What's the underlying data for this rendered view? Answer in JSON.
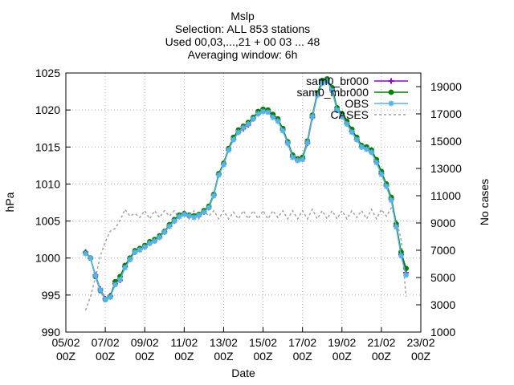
{
  "chart_data": {
    "type": "line",
    "title_lines": [
      "Mslp",
      "Selection: ALL     853 stations",
      "Used 00,03,...,21 + 00 03 ... 48",
      "Averaging window:  6h"
    ],
    "xlabel": "Date",
    "ylabel": "hPa",
    "y2label": "No cases",
    "x_ticks": [
      {
        "line1": "05/02",
        "line2": "00Z",
        "day": 5
      },
      {
        "line1": "07/02",
        "line2": "00Z",
        "day": 7
      },
      {
        "line1": "09/02",
        "line2": "00Z",
        "day": 9
      },
      {
        "line1": "11/02",
        "line2": "00Z",
        "day": 11
      },
      {
        "line1": "13/02",
        "line2": "00Z",
        "day": 13
      },
      {
        "line1": "15/02",
        "line2": "00Z",
        "day": 15
      },
      {
        "line1": "17/02",
        "line2": "00Z",
        "day": 17
      },
      {
        "line1": "19/02",
        "line2": "00Z",
        "day": 19
      },
      {
        "line1": "21/02",
        "line2": "00Z",
        "day": 21
      },
      {
        "line1": "23/02",
        "line2": "00Z",
        "day": 23
      }
    ],
    "xlim_days": [
      5,
      23
    ],
    "ylim": [
      990,
      1025
    ],
    "y_ticks": [
      "990",
      "995",
      "1000",
      "1005",
      "1010",
      "1015",
      "1020",
      "1025"
    ],
    "y2lim": [
      1000,
      20000
    ],
    "y2_ticks": [
      "1000",
      "3000",
      "5000",
      "7000",
      "9000",
      "11000",
      "13000",
      "15000",
      "17000",
      "19000"
    ],
    "legend_position": "top-right",
    "x_days": [
      6.0,
      6.25,
      6.5,
      6.75,
      7.0,
      7.25,
      7.5,
      7.75,
      8.0,
      8.25,
      8.5,
      8.75,
      9.0,
      9.25,
      9.5,
      9.75,
      10.0,
      10.25,
      10.5,
      10.75,
      11.0,
      11.25,
      11.5,
      11.75,
      12.0,
      12.25,
      12.5,
      12.75,
      13.0,
      13.25,
      13.5,
      13.75,
      14.0,
      14.25,
      14.5,
      14.75,
      15.0,
      15.25,
      15.5,
      15.75,
      16.0,
      16.25,
      16.5,
      16.75,
      17.0,
      17.25,
      17.5,
      17.75,
      18.0,
      18.25,
      18.5,
      18.75,
      19.0,
      19.25,
      19.5,
      19.75,
      20.0,
      20.25,
      20.5,
      20.75,
      21.0,
      21.25,
      21.5,
      21.75,
      22.0,
      22.25
    ],
    "series": [
      {
        "name": "sam0_br000",
        "color": "#9400d3",
        "marker": "plus",
        "values": [
          1000.8,
          1000.0,
          997.7,
          995.8,
          994.5,
          994.9,
          996.5,
          997.0,
          998.8,
          999.8,
          1000.8,
          1001.2,
          1001.5,
          1002.0,
          1002.3,
          1002.8,
          1003.5,
          1004.3,
          1005.0,
          1005.7,
          1006.0,
          1005.7,
          1005.6,
          1005.8,
          1006.2,
          1006.8,
          1008.5,
          1011.3,
          1012.7,
          1014.6,
          1016.0,
          1017.0,
          1017.5,
          1018.0,
          1018.8,
          1019.5,
          1019.8,
          1019.8,
          1019.2,
          1018.6,
          1017.3,
          1015.5,
          1013.7,
          1013.2,
          1013.4,
          1015.5,
          1019.0,
          1022.0,
          1023.7,
          1024.0,
          1022.7,
          1020.0,
          1019.1,
          1018.2,
          1017.1,
          1016.0,
          1015.0,
          1014.8,
          1014.3,
          1013.0,
          1011.4,
          1009.8,
          1008.0,
          1004.3,
          1000.5,
          998.0
        ]
      },
      {
        "name": "sam0_mbr000",
        "color": "#008000",
        "marker": "filled-circle",
        "values": [
          1000.7,
          1000.0,
          997.5,
          995.6,
          994.4,
          994.8,
          996.8,
          997.5,
          999.0,
          1000.0,
          1001.0,
          1001.3,
          1001.7,
          1002.2,
          1002.5,
          1003.0,
          1003.6,
          1004.5,
          1005.2,
          1005.8,
          1006.0,
          1005.8,
          1005.7,
          1005.9,
          1006.4,
          1007.0,
          1008.6,
          1011.4,
          1012.8,
          1014.8,
          1016.3,
          1017.3,
          1017.8,
          1018.3,
          1019.0,
          1019.8,
          1020.1,
          1020.0,
          1019.4,
          1018.8,
          1017.5,
          1015.7,
          1013.9,
          1013.4,
          1013.6,
          1015.8,
          1019.3,
          1022.3,
          1024.0,
          1024.2,
          1023.0,
          1020.3,
          1019.5,
          1018.5,
          1017.4,
          1016.3,
          1015.2,
          1015.0,
          1014.6,
          1013.3,
          1011.7,
          1010.0,
          1008.2,
          1004.6,
          1000.8,
          998.6
        ]
      },
      {
        "name": "OBS",
        "color": "#56b4e9",
        "marker": "star",
        "values": [
          1000.6,
          1000.0,
          997.6,
          995.7,
          994.4,
          994.7,
          996.4,
          997.1,
          998.7,
          999.8,
          1000.8,
          1001.1,
          1001.5,
          1002.0,
          1002.3,
          1002.8,
          1003.5,
          1004.3,
          1005.0,
          1005.6,
          1005.9,
          1005.7,
          1005.5,
          1005.8,
          1006.2,
          1006.8,
          1008.4,
          1011.2,
          1012.6,
          1014.6,
          1016.0,
          1017.0,
          1017.6,
          1018.1,
          1018.8,
          1019.5,
          1019.8,
          1019.7,
          1019.0,
          1018.5,
          1017.2,
          1015.5,
          1013.6,
          1013.2,
          1013.3,
          1015.6,
          1019.1,
          1022.0,
          1023.6,
          1023.9,
          1022.6,
          1020.0,
          1019.1,
          1018.1,
          1017.0,
          1016.0,
          1015.0,
          1014.7,
          1014.3,
          1012.9,
          1011.3,
          1009.7,
          1007.8,
          1004.2,
          1000.3,
          997.7
        ]
      }
    ],
    "cases": {
      "name": "CASES",
      "color": "#a0a0a0",
      "axis": "y2",
      "values": [
        2600,
        3600,
        5000,
        6600,
        7600,
        8400,
        8600,
        9200,
        10000,
        9500,
        9700,
        9400,
        9900,
        9300,
        9900,
        9400,
        9900,
        9500,
        9900,
        9300,
        9900,
        9300,
        9900,
        9300,
        9900,
        9500,
        9900,
        9300,
        9900,
        9300,
        9800,
        9300,
        9900,
        9300,
        9900,
        9300,
        9900,
        9300,
        9900,
        9400,
        9900,
        9300,
        9900,
        9300,
        9900,
        9300,
        10000,
        9300,
        9900,
        9300,
        9900,
        9300,
        9900,
        9300,
        9900,
        9400,
        9900,
        9300,
        10000,
        9300,
        10000,
        9500,
        10100,
        9300,
        7800,
        3600
      ]
    }
  }
}
